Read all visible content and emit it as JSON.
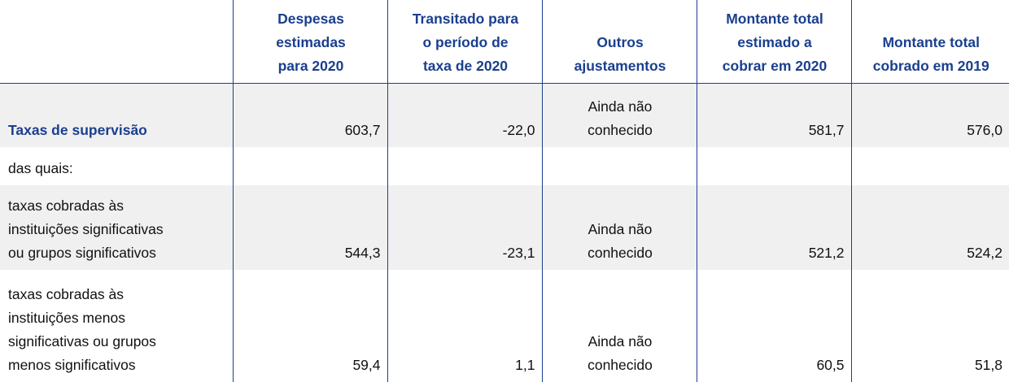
{
  "table": {
    "columns": [
      "Despesas\nestimadas\npara 2020",
      "Transitado para\no período de\ntaxa de 2020",
      "Outros\najustamentos",
      "Montante total\nestimado a\ncobrar em 2020",
      "Montante total\ncobrado em 2019"
    ],
    "rows": [
      {
        "label": "Taxas de supervisão",
        "values": [
          "603,7",
          "-22,0",
          "Ainda não\nconhecido",
          "581,7",
          "576,0"
        ]
      },
      {
        "label": "das quais:"
      },
      {
        "label": "taxas cobradas às\ninstituições significativas\nou grupos significativos",
        "values": [
          "544,3",
          "-23,1",
          "Ainda não\nconhecido",
          "521,2",
          "524,2"
        ]
      },
      {
        "label": "taxas cobradas às\ninstituições menos\nsignificativas ou grupos\nmenos significativos",
        "values": [
          "59,4",
          "1,1",
          "Ainda não\nconhecido",
          "60,5",
          "51,8"
        ]
      }
    ]
  }
}
